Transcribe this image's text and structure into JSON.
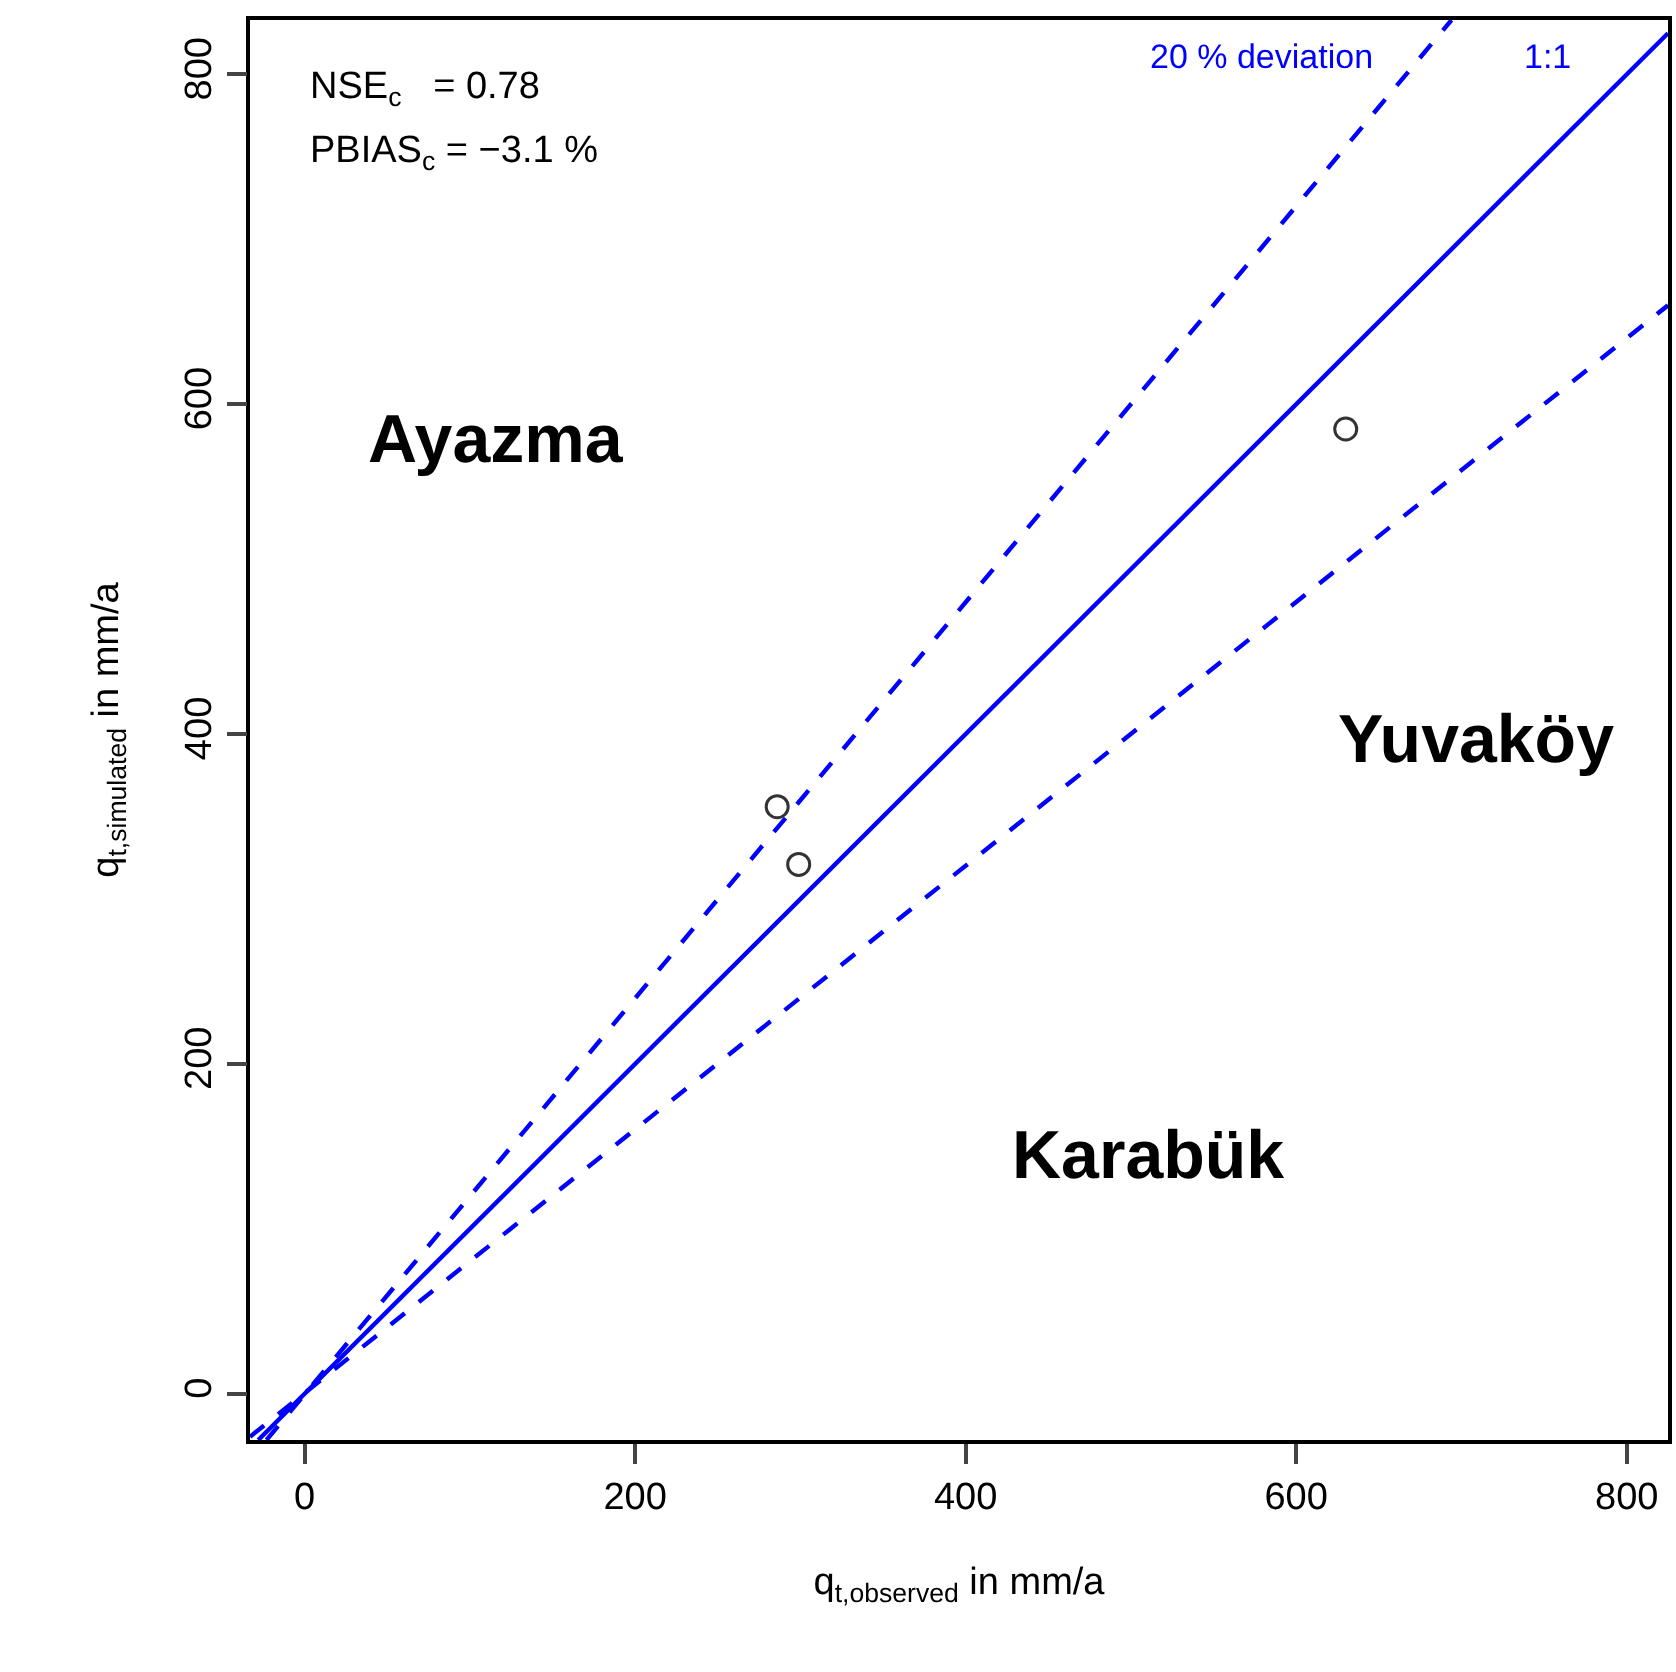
{
  "chart_data": {
    "type": "scatter",
    "xlabel": "q$_{t,observed}$ in mm/a",
    "ylabel": "q$_{t,simulated}$ in mm/a",
    "xlim": [
      -33,
      825
    ],
    "ylim": [
      -28,
      833
    ],
    "xticks": [
      0,
      200,
      400,
      600,
      800
    ],
    "yticks": [
      0,
      200,
      400,
      600,
      800
    ],
    "grid": false,
    "legend": false,
    "series": [
      {
        "color": "#333333",
        "marker": "circle",
        "x": [
          286,
          299,
          630
        ],
        "values": [
          356,
          321,
          585
        ]
      },
      {
        "type": "line",
        "name": "1:1",
        "color": "#0000ff",
        "line_style": "solid",
        "x": [
          -28,
          825
        ],
        "values": [
          -28,
          825
        ]
      },
      {
        "type": "line",
        "name": "20 % deviation",
        "color": "#0000ff",
        "line_style": "dashed",
        "x": [
          -23,
          694
        ],
        "values": [
          -28,
          833
        ]
      },
      {
        "type": "line",
        "color": "#0000ff",
        "line_style": "dashed",
        "x": [
          -33,
          825
        ],
        "values": [
          -26,
          660
        ]
      }
    ],
    "annotations": [
      "Ayazma",
      "Yuvaköy",
      "Karabük",
      "NSE$_{c}$   = 0.78",
      "PBIAS$_{c}$ = −3.1 %"
    ]
  }
}
